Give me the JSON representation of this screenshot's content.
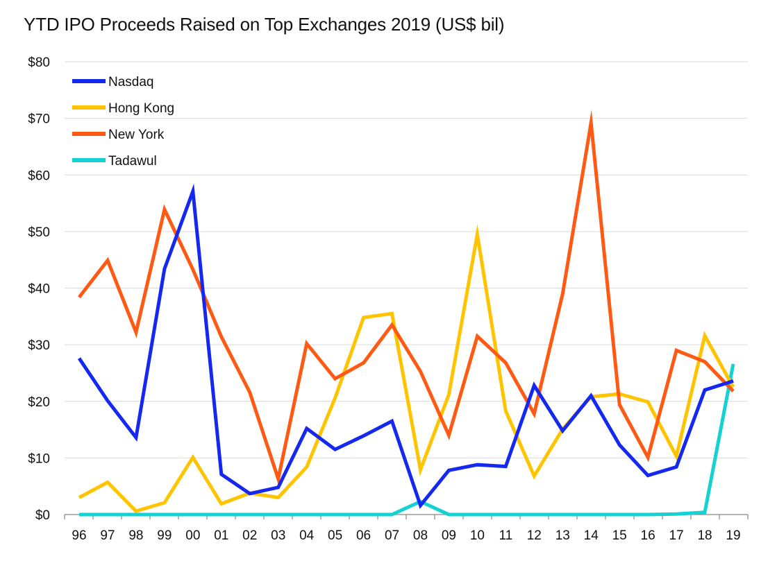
{
  "chart_data": {
    "type": "line",
    "title": "YTD IPO Proceeds Raised on Top Exchanges 2019 (US$ bil)",
    "xlabel": "",
    "ylabel": "",
    "categories": [
      "96",
      "97",
      "98",
      "99",
      "00",
      "01",
      "02",
      "03",
      "04",
      "05",
      "06",
      "07",
      "08",
      "09",
      "10",
      "11",
      "12",
      "13",
      "14",
      "15",
      "16",
      "17",
      "18",
      "19"
    ],
    "ylim": [
      0,
      80
    ],
    "yticks": [
      0,
      10,
      20,
      30,
      40,
      50,
      60,
      70,
      80
    ],
    "ytick_labels": [
      "$0",
      "$10",
      "$20",
      "$30",
      "$40",
      "$50",
      "$60",
      "$70",
      "$80"
    ],
    "grid": true,
    "legend_position": "top-left",
    "series": [
      {
        "name": "Nasdaq",
        "color": "#1428F0",
        "values": [
          27.6,
          20.1,
          13.6,
          43.4,
          57.1,
          7.1,
          3.7,
          4.8,
          15.2,
          11.5,
          13.9,
          16.5,
          1.6,
          7.8,
          8.8,
          8.5,
          22.8,
          14.8,
          21.0,
          12.3,
          6.9,
          8.4,
          22.0,
          23.6
        ]
      },
      {
        "name": "Hong Kong",
        "color": "#FFC400",
        "values": [
          3.0,
          5.7,
          0.6,
          2.1,
          10.1,
          1.9,
          3.8,
          3.0,
          8.4,
          20.6,
          34.8,
          35.5,
          7.9,
          21.2,
          49.5,
          18.3,
          6.8,
          15.1,
          20.8,
          21.3,
          19.9,
          10.3,
          31.6,
          22.5
        ]
      },
      {
        "name": "New York",
        "color": "#FF5A14",
        "values": [
          38.4,
          44.9,
          32.2,
          53.9,
          43.3,
          31.4,
          21.6,
          6.3,
          30.2,
          24.0,
          26.8,
          33.5,
          25.3,
          14.0,
          31.5,
          26.8,
          17.8,
          39.0,
          69.2,
          19.4,
          10.1,
          29.0,
          27.0,
          21.8
        ]
      },
      {
        "name": "Tadawul",
        "color": "#14D2D2",
        "values": [
          0,
          0,
          0,
          0,
          0,
          0,
          0,
          0,
          0,
          0,
          0,
          0,
          2.3,
          0,
          0,
          0,
          0,
          0,
          0,
          0,
          0,
          0.1,
          0.4,
          26.6
        ]
      }
    ]
  }
}
